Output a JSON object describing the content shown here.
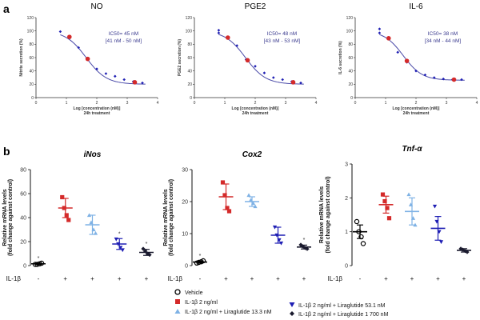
{
  "figure": {
    "panel_a_label": "a",
    "panel_b_label": "b"
  },
  "chart_data": [
    {
      "type": "scatter",
      "panel": "a",
      "title": "NO",
      "xlabel": "Log [concentration (nM)]",
      "xlabel2": "24h treatment",
      "ylabel": "Nitrite secretion (%)",
      "xlim": [
        0,
        4
      ],
      "ylim": [
        0,
        120
      ],
      "xticks": [
        "0",
        "1",
        "2",
        "3",
        "4"
      ],
      "yticks": [
        "0",
        "20",
        "40",
        "60",
        "80",
        "100",
        "120"
      ],
      "annotation_1": "IC50= 45 nM",
      "annotation_2": "[41 nM - 50 nM]",
      "observed": {
        "x": [
          0.8,
          1.1,
          1.4,
          1.7,
          2.0,
          2.3,
          2.6,
          2.9,
          3.2,
          3.5
        ],
        "y": [
          99,
          92,
          75,
          57,
          43,
          36,
          32,
          27,
          24,
          22
        ]
      },
      "highlighted": {
        "x": [
          1.1,
          1.7,
          3.25
        ],
        "y": [
          91,
          58,
          23
        ]
      },
      "fit": {
        "top": 100,
        "bottom": 20,
        "log_ic50": 1.65,
        "hill": 1.3
      }
    },
    {
      "type": "scatter",
      "panel": "a",
      "title": "PGE2",
      "xlabel": "Log [concentration (nM)]",
      "xlabel2": "24h treatment",
      "ylabel": "PGE2 secretion (%)",
      "xlim": [
        0,
        4
      ],
      "ylim": [
        0,
        120
      ],
      "xticks": [
        "0",
        "1",
        "2",
        "3",
        "4"
      ],
      "yticks": [
        "0",
        "20",
        "40",
        "60",
        "80",
        "100",
        "120"
      ],
      "annotation_1": "IC50= 48 nM",
      "annotation_2": "[43 nM - 53 nM]",
      "observed": {
        "x": [
          0.8,
          0.8,
          1.1,
          1.4,
          1.7,
          2.0,
          2.3,
          2.6,
          2.9,
          3.2,
          3.5
        ],
        "y": [
          101,
          97,
          90,
          78,
          57,
          47,
          37,
          30,
          27,
          24,
          22
        ]
      },
      "highlighted": {
        "x": [
          1.1,
          1.75,
          3.25
        ],
        "y": [
          90,
          56,
          23
        ]
      },
      "fit": {
        "top": 100,
        "bottom": 20,
        "log_ic50": 1.68,
        "hill": 1.3
      }
    },
    {
      "type": "scatter",
      "panel": "a",
      "title": "IL-6",
      "xlabel": "Log [concentration (nM)]",
      "xlabel2": "24h treatment",
      "ylabel": "IL-6 secretion (%)",
      "xlim": [
        0,
        4
      ],
      "ylim": [
        0,
        120
      ],
      "xticks": [
        "0",
        "1",
        "2",
        "3",
        "4"
      ],
      "yticks": [
        "0",
        "20",
        "40",
        "60",
        "80",
        "100",
        "120"
      ],
      "annotation_1": "IC50= 38 nM",
      "annotation_2": "[34 nM - 44 nM]",
      "observed": {
        "x": [
          0.8,
          0.8,
          1.1,
          1.4,
          1.7,
          2.0,
          2.3,
          2.6,
          2.9,
          3.2,
          3.5
        ],
        "y": [
          103,
          97,
          88,
          68,
          53,
          40,
          34,
          30,
          28,
          27,
          27
        ]
      },
      "highlighted": {
        "x": [
          1.1,
          1.7,
          3.25
        ],
        "y": [
          89,
          55,
          27
        ]
      },
      "fit": {
        "top": 100,
        "bottom": 26,
        "log_ic50": 1.58,
        "hill": 1.4
      }
    },
    {
      "type": "scatter",
      "panel": "b",
      "title": "iNos",
      "ylabel_1": "Relative mRNA levels",
      "ylabel_2": "(fold change against control)",
      "ylim": [
        0,
        80
      ],
      "yticks": [
        "0",
        "20",
        "40",
        "60",
        "80"
      ],
      "x_prefix": "IL-1β",
      "x_signs": [
        "-",
        "+",
        "+",
        "+",
        "+"
      ],
      "groups": [
        {
          "points": [
            1,
            1,
            1.5,
            2
          ],
          "mean": 1.5,
          "sem": 0.5,
          "star": "*"
        },
        {
          "points": [
            57,
            48,
            42,
            38
          ],
          "mean": 48,
          "sem": 8,
          "star": ""
        },
        {
          "points": [
            42,
            36,
            30,
            27
          ],
          "mean": 34,
          "sem": 8,
          "star": ""
        },
        {
          "points": [
            22,
            18,
            15,
            13
          ],
          "mean": 18,
          "sem": 4.5,
          "star": "*"
        },
        {
          "points": [
            14,
            12,
            10,
            9
          ],
          "mean": 11,
          "sem": 2.5,
          "star": "*"
        }
      ]
    },
    {
      "type": "scatter",
      "panel": "b",
      "title": "Cox2",
      "ylabel_1": "Relative mRNA levels",
      "ylabel_2": "(fold change against control)",
      "ylim": [
        0,
        30
      ],
      "yticks": [
        "0",
        "10",
        "20",
        "30"
      ],
      "x_prefix": "IL-1β",
      "x_signs": [
        "-",
        "+",
        "+",
        "+",
        "+"
      ],
      "groups": [
        {
          "points": [
            0.8,
            1,
            1.2,
            1.5
          ],
          "mean": 1.1,
          "sem": 0.3,
          "star": "*"
        },
        {
          "points": [
            26,
            22,
            18,
            17
          ],
          "mean": 21.5,
          "sem": 4,
          "star": ""
        },
        {
          "points": [
            22,
            20.5,
            19.5,
            18.5
          ],
          "mean": 20,
          "sem": 1.5,
          "star": ""
        },
        {
          "points": [
            12,
            9.5,
            8,
            7
          ],
          "mean": 9.5,
          "sem": 2.5,
          "star": ""
        },
        {
          "points": [
            6.5,
            6,
            5.5,
            5.2
          ],
          "mean": 5.8,
          "sem": 0.6,
          "star": "*"
        }
      ]
    },
    {
      "type": "scatter",
      "panel": "b",
      "title": "Tnf-α",
      "ylabel_1": "Relative mRNA levels",
      "ylabel_2": "(fold change against control)",
      "ylim": [
        0,
        3
      ],
      "yticks": [
        "0",
        "1",
        "2",
        "3"
      ],
      "x_prefix": "IL-1β",
      "x_signs": [
        "-",
        "+",
        "+",
        "+",
        "+"
      ],
      "groups": [
        {
          "points": [
            1.3,
            1.0,
            0.85,
            0.65
          ],
          "mean": 1.0,
          "sem": 0.2,
          "star": ""
        },
        {
          "points": [
            2.1,
            1.9,
            1.7,
            1.4
          ],
          "mean": 1.8,
          "sem": 0.25,
          "star": ""
        },
        {
          "points": [
            2.1,
            1.8,
            1.4,
            1.2
          ],
          "mean": 1.6,
          "sem": 0.4,
          "star": ""
        },
        {
          "points": [
            1.75,
            1.3,
            1.0,
            0.7
          ],
          "mean": 1.1,
          "sem": 0.35,
          "star": ""
        },
        {
          "points": [
            0.5,
            0.47,
            0.43,
            0.4
          ],
          "mean": 0.45,
          "sem": 0.05,
          "star": ""
        }
      ]
    }
  ],
  "legend": {
    "items": [
      {
        "label": "Vehicle",
        "color": "#000000",
        "marker": "open-circle"
      },
      {
        "label": "IL-1β 2 ng/ml",
        "color": "#d42a2a",
        "marker": "square"
      },
      {
        "label": "IL-1β 2 ng/ml + Liraglutide 13.3 nM",
        "color": "#7fb2e5",
        "marker": "triangle-up"
      },
      {
        "label": "IL-1β 2 ng/ml + Liraglutide 53.1 nM",
        "color": "#1f1fb4",
        "marker": "triangle-down"
      },
      {
        "label": "IL-1β 2 ng/ml + Liraglutide 1 700 nM",
        "color": "#1a1a2e",
        "marker": "diamond"
      }
    ]
  },
  "colors": {
    "fit_line": "#4a4aa8",
    "observed": "#1f1fb4",
    "highlight": "#d42a2a",
    "annotation": "#3b3b8f"
  }
}
